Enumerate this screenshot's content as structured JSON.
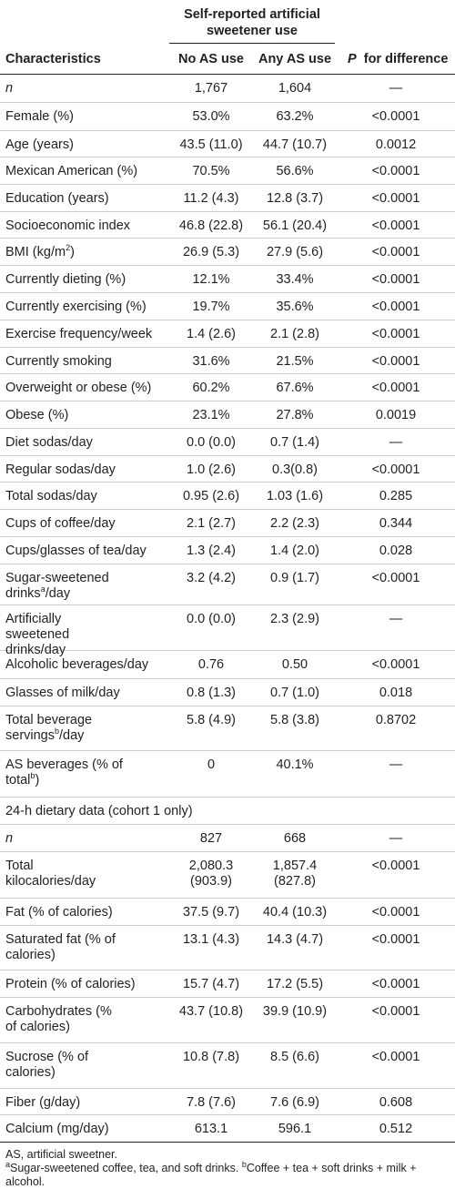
{
  "header": {
    "group": "Self-reported artificial sweetener use",
    "col_characteristics": "Characteristics",
    "col_no_as": "No AS use",
    "col_any_as": "Any AS use",
    "col_p": "for difference",
    "col_p_italic": "P"
  },
  "rows": [
    {
      "label": "n",
      "italic": true,
      "no": "1,767",
      "any": "1,604",
      "p": "—",
      "h": 31
    },
    {
      "label": "Female (%)",
      "no": "53.0%",
      "any": "63.2%",
      "p": "<0.0001",
      "h": 31
    },
    {
      "label": "Age (years)",
      "no": "43.5 (11.0)",
      "any": "44.7 (10.7)",
      "p": "0.0012",
      "h": 29
    },
    {
      "label": "Mexican American (%)",
      "no": "70.5%",
      "any": "56.6%",
      "p": "<0.0001",
      "h": 30
    },
    {
      "label": "Education (years)",
      "no": "11.2 (4.3)",
      "any": "12.8 (3.7)",
      "p": "<0.0001",
      "h": 30
    },
    {
      "label": "Socioeconomic index",
      "no": "46.8 (22.8)",
      "any": "56.1 (20.4)",
      "p": "<0.0001",
      "h": 29
    },
    {
      "label": "BMI (kg/m",
      "sup": "2",
      "label_after": ")",
      "no": "26.9 (5.3)",
      "any": "27.9 (5.6)",
      "p": "<0.0001",
      "h": 30
    },
    {
      "label": "Currently dieting (%)",
      "no": "12.1%",
      "any": "33.4%",
      "p": "<0.0001",
      "h": 30
    },
    {
      "label": "Currently exercising (%)",
      "no": "19.7%",
      "any": "35.6%",
      "p": "<0.0001",
      "h": 30
    },
    {
      "label": "Exercise frequency/week",
      "no": "1.4 (2.6)",
      "any": "2.1 (2.8)",
      "p": "<0.0001",
      "h": 30
    },
    {
      "label": "Currently smoking",
      "no": "31.6%",
      "any": "21.5%",
      "p": "<0.0001",
      "h": 29
    },
    {
      "label": "Overweight or obese (%)",
      "no": "60.2%",
      "any": "67.6%",
      "p": "<0.0001",
      "h": 30
    },
    {
      "label": "Obese (%)",
      "no": "23.1%",
      "any": "27.8%",
      "p": "0.0019",
      "h": 30
    },
    {
      "label": "Diet sodas/day",
      "no": "0.0 (0.0)",
      "any": "0.7 (1.4)",
      "p": "—",
      "h": 30
    },
    {
      "label": "Regular sodas/day",
      "no": "1.0 (2.6)",
      "any": "0.3(0.8)",
      "p": "<0.0001",
      "h": 29
    },
    {
      "label": "Total sodas/day",
      "no": "0.95 (2.6)",
      "any": "1.03 (1.6)",
      "p": "0.285",
      "h": 30
    },
    {
      "label": "Cups of coffee/day",
      "no": "2.1 (2.7)",
      "any": "2.2 (2.3)",
      "p": "0.344",
      "h": 30
    },
    {
      "label": "Cups/glasses of tea/day",
      "no": "1.3 (2.4)",
      "any": "1.4 (2.0)",
      "p": "0.028",
      "h": 30
    },
    {
      "label": "Sugar-sweetened drinks",
      "sup": "a",
      "label_after": "/day",
      "no": "3.2 (4.2)",
      "any": "0.9 (1.7)",
      "p": "<0.0001",
      "h": 45
    },
    {
      "label": "Artificially sweetened drinks/day",
      "no": "0.0 (0.0)",
      "any": "2.3 (2.9)",
      "p": "—",
      "h": 50
    },
    {
      "label": "Alcoholic beverages/day",
      "no": "0.76",
      "any": "0.50",
      "p": "<0.0001",
      "h": 31
    },
    {
      "label": "Glasses of milk/day",
      "no": "0.8 (1.3)",
      "any": "0.7 (1.0)",
      "p": "0.018",
      "h": 30
    },
    {
      "label": "Total beverage servings",
      "sup": "b",
      "label_after": "/day",
      "no": "5.8 (4.9)",
      "any": "5.8 (3.8)",
      "p": "0.8702",
      "h": 49
    },
    {
      "label": "AS beverages (% of total",
      "sup": "b",
      "label_after": ")",
      "no": "0",
      "any": "40.1%",
      "p": "—",
      "h": 51
    },
    {
      "label": "24-h dietary data (cohort 1 only)",
      "span": true,
      "h": 30
    },
    {
      "label": "n",
      "italic": true,
      "no": "827",
      "any": "668",
      "p": "—",
      "h": 30
    },
    {
      "label": "Total kilocalories/day",
      "no": "2,080.3 (903.9)",
      "any": "1,857.4 (827.8)",
      "p": "<0.0001",
      "h": 51
    },
    {
      "label": "Fat (% of calories)",
      "no": "37.5 (9.7)",
      "any": "40.4 (10.3)",
      "p": "<0.0001",
      "h": 30
    },
    {
      "label": "Saturated fat (% of calories)",
      "no": "13.1 (4.3)",
      "any": "14.3 (4.7)",
      "p": "<0.0001",
      "h": 49
    },
    {
      "label": "Protein (% of calories)",
      "no": "15.7 (4.7)",
      "any": "17.2 (5.5)",
      "p": "<0.0001",
      "h": 30
    },
    {
      "label": "Carbohydrates (% of calories)",
      "no": "43.7 (10.8)",
      "any": "39.9 (10.9)",
      "p": "<0.0001",
      "h": 50
    },
    {
      "label": "Sucrose (% of calories)",
      "no": "10.8 (7.8)",
      "any": "8.5 (6.6)",
      "p": "<0.0001",
      "h": 50
    },
    {
      "label": "Fiber (g/day)",
      "no": "7.8 (7.6)",
      "any": "7.6 (6.9)",
      "p": "0.608",
      "h": 29
    },
    {
      "label": "Calcium (mg/day)",
      "no": "613.1",
      "any": "596.1",
      "p": "0.512",
      "h": 30
    }
  ],
  "footnotes": {
    "abbrev": "AS, artificial sweetner.",
    "a_mark": "a",
    "a_text": "Sugar-sweetened coffee, tea, and soft drinks.",
    "b_mark": "b",
    "b_text": "Coffee + tea + soft drinks + milk + alcohol."
  }
}
